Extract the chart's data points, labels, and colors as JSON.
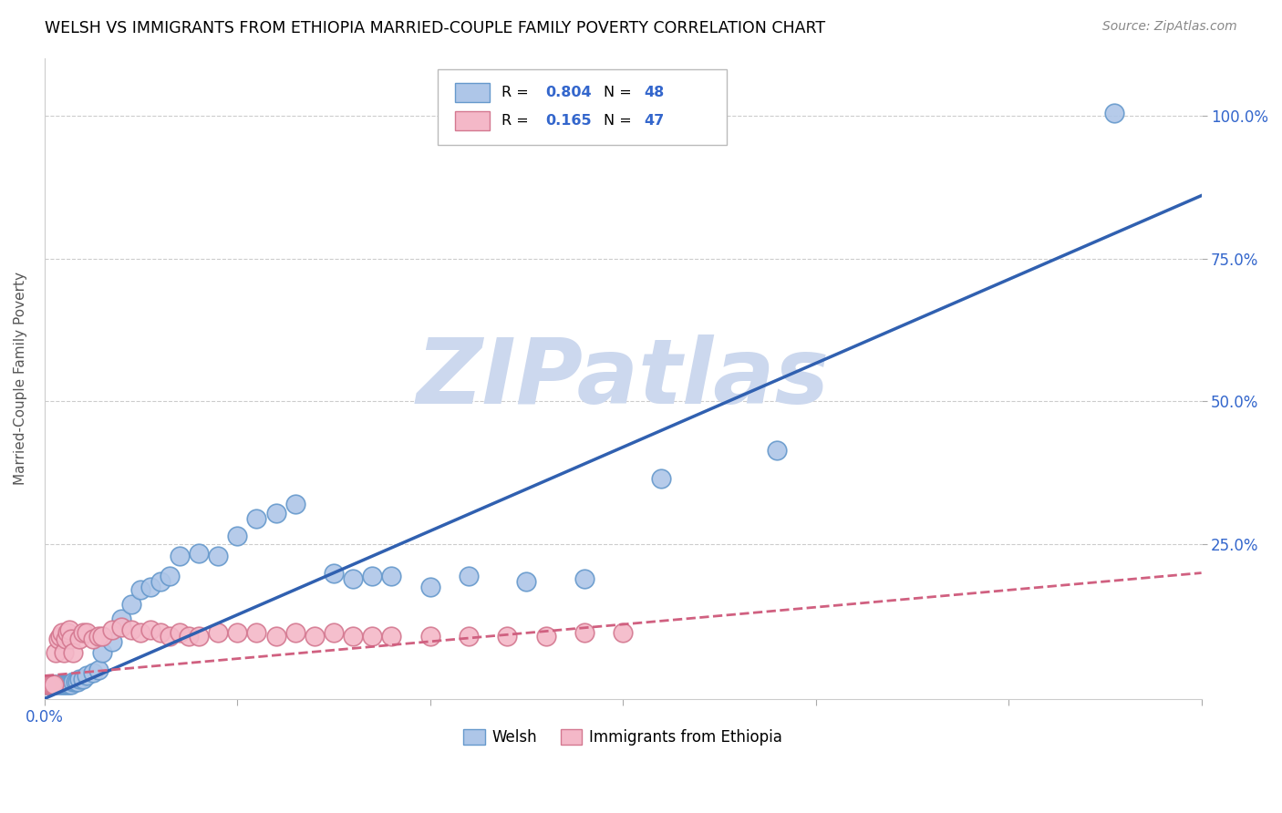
{
  "title": "WELSH VS IMMIGRANTS FROM ETHIOPIA MARRIED-COUPLE FAMILY POVERTY CORRELATION CHART",
  "source": "Source: ZipAtlas.com",
  "ylabel": "Married-Couple Family Poverty",
  "xlim": [
    0.0,
    0.6
  ],
  "ylim": [
    -0.02,
    1.1
  ],
  "xtick_values": [
    0.0,
    0.1,
    0.2,
    0.3,
    0.4,
    0.5,
    0.6
  ],
  "xtick_labels_show": {
    "0.0": "0.0%"
  },
  "ytick_values": [
    0.25,
    0.5,
    0.75,
    1.0
  ],
  "ytick_labels": [
    "25.0%",
    "50.0%",
    "75.0%",
    "100.0%"
  ],
  "welsh_color": "#aec6e8",
  "welsh_edge_color": "#6699cc",
  "ethiopia_color": "#f4b8c8",
  "ethiopia_edge_color": "#d47890",
  "blue_line_color": "#3060b0",
  "pink_line_color": "#d06080",
  "legend_R1": "0.804",
  "legend_N1": "48",
  "legend_R2": "0.165",
  "legend_N2": "47",
  "value_color": "#3366cc",
  "watermark": "ZIPatlas",
  "watermark_color": "#ccd8ee",
  "welsh_scatter_x": [
    0.001,
    0.002,
    0.003,
    0.004,
    0.005,
    0.006,
    0.007,
    0.008,
    0.009,
    0.01,
    0.011,
    0.012,
    0.013,
    0.014,
    0.015,
    0.016,
    0.017,
    0.018,
    0.02,
    0.022,
    0.025,
    0.028,
    0.03,
    0.035,
    0.04,
    0.045,
    0.05,
    0.055,
    0.06,
    0.065,
    0.07,
    0.08,
    0.09,
    0.1,
    0.11,
    0.12,
    0.13,
    0.15,
    0.16,
    0.17,
    0.18,
    0.2,
    0.22,
    0.25,
    0.28,
    0.32,
    0.38,
    0.555
  ],
  "welsh_scatter_y": [
    0.005,
    0.005,
    0.005,
    0.005,
    0.005,
    0.005,
    0.005,
    0.005,
    0.005,
    0.005,
    0.005,
    0.005,
    0.005,
    0.005,
    0.01,
    0.01,
    0.01,
    0.015,
    0.015,
    0.02,
    0.025,
    0.03,
    0.06,
    0.08,
    0.12,
    0.145,
    0.17,
    0.175,
    0.185,
    0.195,
    0.23,
    0.235,
    0.23,
    0.265,
    0.295,
    0.305,
    0.32,
    0.2,
    0.19,
    0.195,
    0.195,
    0.175,
    0.195,
    0.185,
    0.19,
    0.365,
    0.415,
    1.005
  ],
  "ethiopia_scatter_x": [
    0.001,
    0.002,
    0.003,
    0.004,
    0.005,
    0.006,
    0.007,
    0.008,
    0.009,
    0.01,
    0.011,
    0.012,
    0.013,
    0.014,
    0.015,
    0.018,
    0.02,
    0.022,
    0.025,
    0.028,
    0.03,
    0.035,
    0.04,
    0.045,
    0.05,
    0.055,
    0.06,
    0.065,
    0.07,
    0.075,
    0.08,
    0.09,
    0.1,
    0.11,
    0.12,
    0.13,
    0.14,
    0.15,
    0.16,
    0.17,
    0.18,
    0.2,
    0.22,
    0.24,
    0.26,
    0.28,
    0.3
  ],
  "ethiopia_scatter_y": [
    0.005,
    0.005,
    0.005,
    0.005,
    0.005,
    0.06,
    0.085,
    0.09,
    0.095,
    0.06,
    0.085,
    0.095,
    0.1,
    0.085,
    0.06,
    0.085,
    0.095,
    0.095,
    0.085,
    0.09,
    0.09,
    0.1,
    0.105,
    0.1,
    0.095,
    0.1,
    0.095,
    0.09,
    0.095,
    0.09,
    0.09,
    0.095,
    0.095,
    0.095,
    0.09,
    0.095,
    0.09,
    0.095,
    0.09,
    0.09,
    0.09,
    0.09,
    0.09,
    0.09,
    0.09,
    0.095,
    0.095
  ],
  "blue_line_x0": 0.0,
  "blue_line_x1": 0.6,
  "blue_line_y0": -0.02,
  "blue_line_y1": 0.86,
  "pink_line_x0": 0.0,
  "pink_line_x1": 0.6,
  "pink_line_y0": 0.02,
  "pink_line_y1": 0.2
}
